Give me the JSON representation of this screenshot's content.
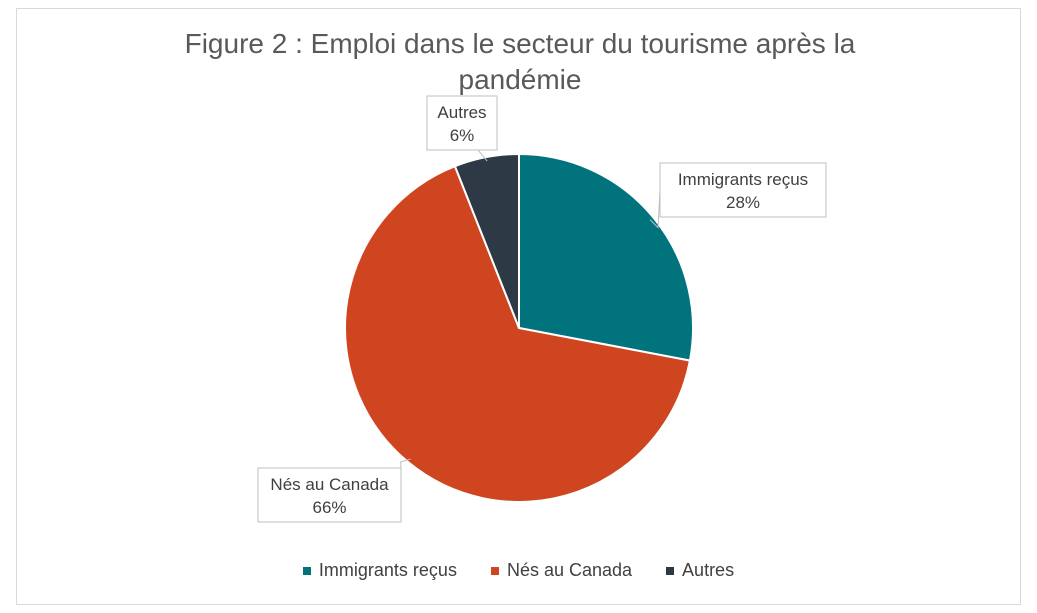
{
  "chart_data": {
    "type": "pie",
    "title": "Figure 2 : Emploi dans le secteur du tourisme après la pandémie",
    "categories": [
      "Immigrants reçus",
      "Nés au Canada",
      "Autres"
    ],
    "values": [
      28,
      66,
      6
    ],
    "value_labels": [
      "28%",
      "66%",
      "6%"
    ],
    "colors": [
      "#00737c",
      "#cf4520",
      "#2d3a45"
    ],
    "legend_position": "bottom",
    "start_angle_deg": 0,
    "direction": "clockwise"
  }
}
